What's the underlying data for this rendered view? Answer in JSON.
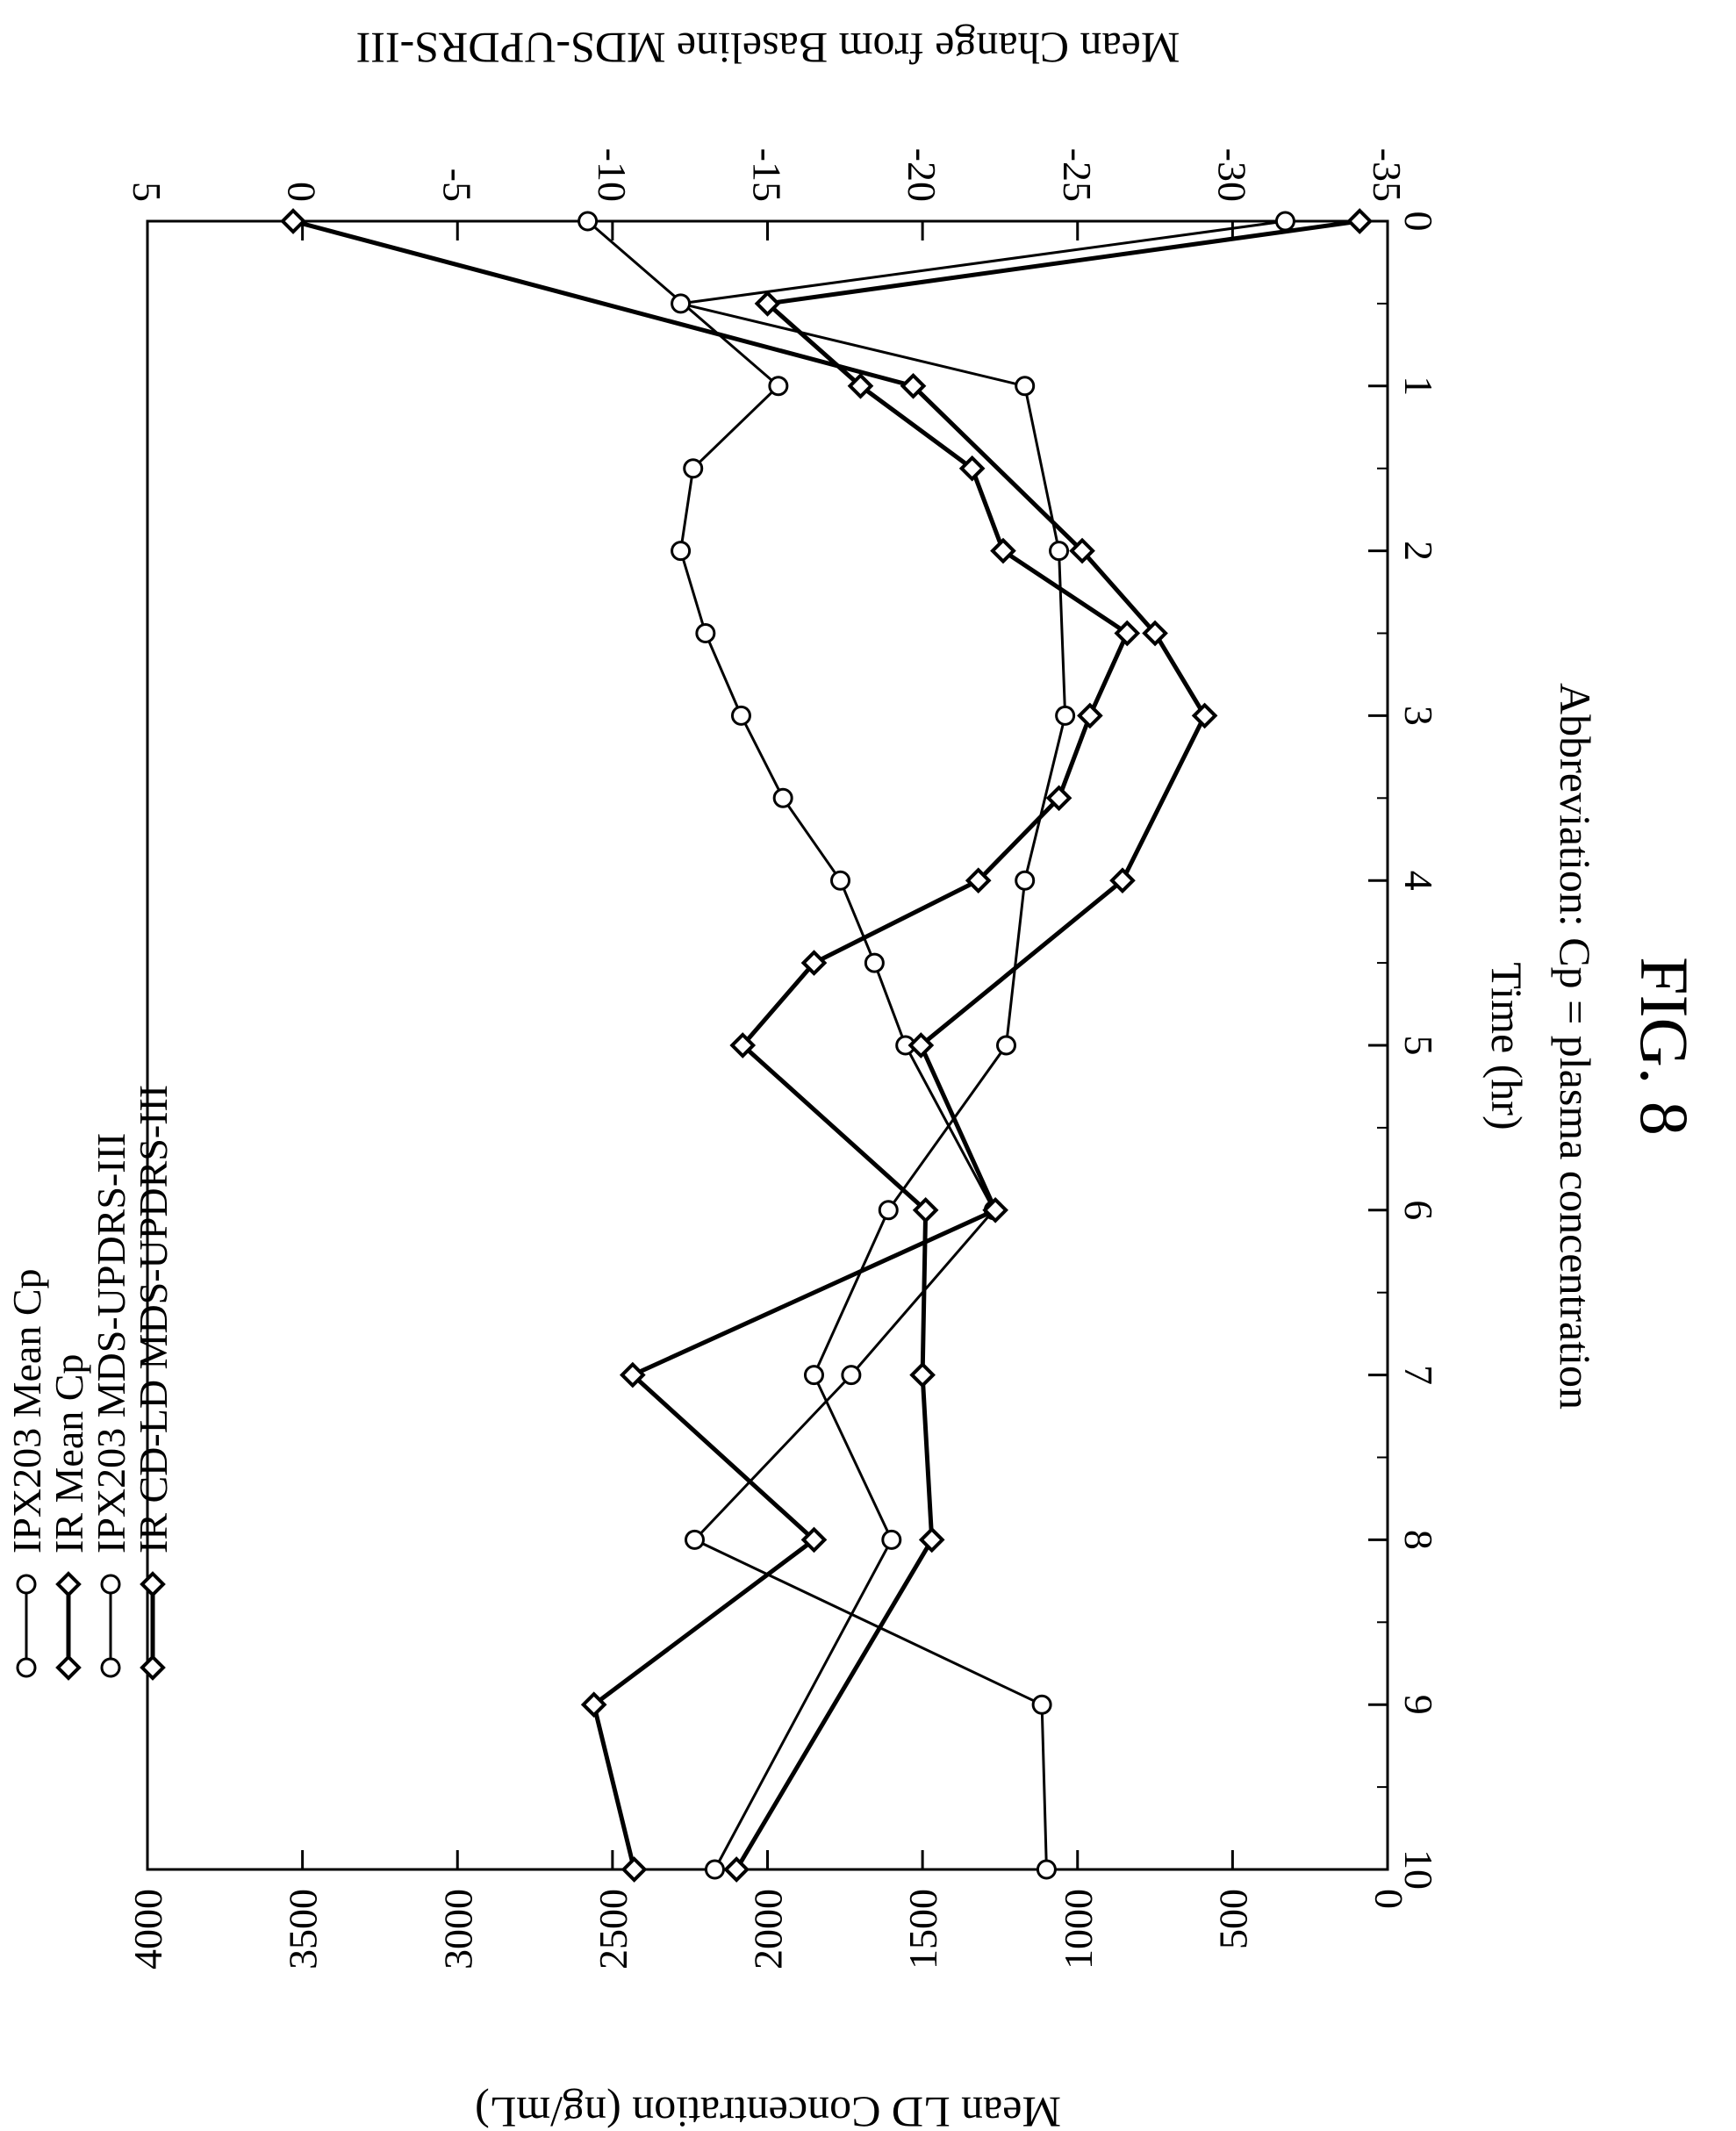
{
  "figure_label": "FIG. 8",
  "abbreviation": "Abbreviation: Cp = plasma concentration",
  "chart_data": {
    "type": "line",
    "orientation": "rotated-90-clockwise",
    "x": {
      "label": "Time (hr)",
      "range": [
        0,
        10
      ],
      "ticks": [
        "0",
        "1",
        "2",
        "3",
        "4",
        "5",
        "6",
        "7",
        "8",
        "9",
        "10"
      ]
    },
    "y_left": {
      "label": "Mean LD Concentration (ng/mL)",
      "range": [
        0,
        4000
      ],
      "ticks": [
        {
          "v": 0,
          "t": "0"
        },
        {
          "v": 500,
          "t": "500"
        },
        {
          "v": 1000,
          "t": "1000"
        },
        {
          "v": 1500,
          "t": "1500"
        },
        {
          "v": 2000,
          "t": "2000"
        },
        {
          "v": 2500,
          "t": "2500"
        },
        {
          "v": 3000,
          "t": "3000"
        },
        {
          "v": 3500,
          "t": "3500"
        },
        {
          "v": 4000,
          "t": "4000"
        }
      ]
    },
    "y_right": {
      "label": "Mean Change from Baseline MDS-UPDRS-III",
      "range": [
        5,
        -35
      ],
      "ticks": [
        {
          "v": 5,
          "t": "5"
        },
        {
          "v": 0,
          "t": "0"
        },
        {
          "v": -5,
          "t": "-5"
        },
        {
          "v": -10,
          "t": "-10"
        },
        {
          "v": -15,
          "t": "-15"
        },
        {
          "v": -20,
          "t": "-20"
        },
        {
          "v": -25,
          "t": "-25"
        },
        {
          "v": -30,
          "t": "-30"
        },
        {
          "v": -35,
          "t": "-35"
        }
      ]
    },
    "grid": false,
    "legend_position": "top-left",
    "series": [
      {
        "name": "IPX203 Mean Cp",
        "axis": "left",
        "marker": "circle",
        "line_width": 3,
        "points": [
          [
            0,
            2580
          ],
          [
            1,
            1965
          ],
          [
            1.5,
            2240
          ],
          [
            2,
            2280
          ],
          [
            2.5,
            2200
          ],
          [
            3,
            2085
          ],
          [
            3.5,
            1950
          ],
          [
            4,
            1765
          ],
          [
            4.5,
            1655
          ],
          [
            5,
            1555
          ],
          [
            6,
            1270
          ],
          [
            7,
            1730
          ],
          [
            8,
            2235
          ],
          [
            9,
            1115
          ],
          [
            10,
            1100
          ]
        ]
      },
      {
        "name": "IR Mean Cp",
        "axis": "left",
        "marker": "diamond",
        "line_width": 5,
        "points": [
          [
            0,
            3530
          ],
          [
            1,
            1530
          ],
          [
            2,
            985
          ],
          [
            2.5,
            750
          ],
          [
            3,
            590
          ],
          [
            4,
            855
          ],
          [
            5,
            1505
          ],
          [
            6,
            1265
          ],
          [
            7,
            2435
          ],
          [
            8,
            1850
          ],
          [
            9,
            2560
          ],
          [
            10,
            2430
          ]
        ]
      },
      {
        "name": "IPX203 MDS-UPDRS-III",
        "axis": "right",
        "marker": "circle",
        "line_width": 3,
        "points": [
          [
            0,
            -31.7
          ],
          [
            0.5,
            -12.2
          ],
          [
            1,
            -23.3
          ],
          [
            2,
            -24.4
          ],
          [
            3,
            -24.6
          ],
          [
            4,
            -23.3
          ],
          [
            5,
            -22.7
          ],
          [
            6,
            -18.9
          ],
          [
            7,
            -16.5
          ],
          [
            8,
            -19.0
          ],
          [
            10,
            -13.3
          ]
        ]
      },
      {
        "name": "IR CD-LD MDS-UPDRS-III",
        "axis": "right",
        "marker": "diamond",
        "line_width": 5,
        "points": [
          [
            0,
            -34.1
          ],
          [
            0.5,
            -15.0
          ],
          [
            1,
            -18.0
          ],
          [
            1.5,
            -21.6
          ],
          [
            2,
            -22.6
          ],
          [
            2.5,
            -26.6
          ],
          [
            3,
            -25.4
          ],
          [
            3.5,
            -24.4
          ],
          [
            4,
            -21.8
          ],
          [
            4.5,
            -16.5
          ],
          [
            5,
            -14.2
          ],
          [
            6,
            -20.1
          ],
          [
            7,
            -20.0
          ],
          [
            8,
            -20.3
          ],
          [
            10,
            -14.0
          ]
        ]
      }
    ]
  }
}
